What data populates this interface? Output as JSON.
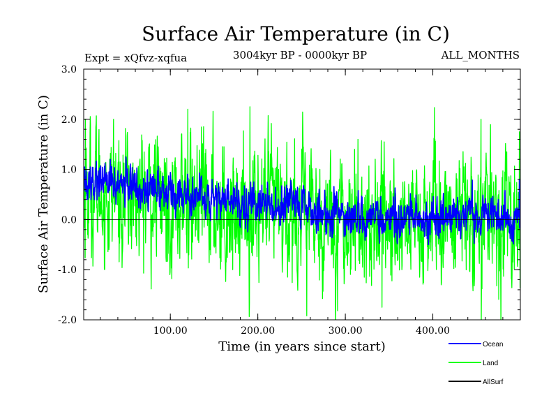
{
  "chart_data": {
    "type": "line",
    "title": "Surface Air Temperature (in C)",
    "subtitle": "3004kyr BP - 0000kyr BP",
    "left_label": "Expt = xQfvz-xqfua",
    "right_label": "ALL_MONTHS",
    "xlabel": "Time (in years since start)",
    "ylabel": "Surface Air Temperature (in C)",
    "xlim": [
      1,
      500
    ],
    "ylim": [
      -2.0,
      3.0
    ],
    "x_ticks": [
      {
        "value": 100,
        "label": "100.00"
      },
      {
        "value": 200,
        "label": "200.00"
      },
      {
        "value": 300,
        "label": "300.00"
      },
      {
        "value": 400,
        "label": "400.00"
      }
    ],
    "y_ticks": [
      {
        "value": 3.0,
        "label": "3.0"
      },
      {
        "value": 2.0,
        "label": "2.0"
      },
      {
        "value": 1.0,
        "label": "1.0"
      },
      {
        "value": 0.0,
        "label": "0.0"
      },
      {
        "value": -1.0,
        "label": "-1.0"
      },
      {
        "value": -2.0,
        "label": "-2.0"
      }
    ],
    "zero_line": 0.0,
    "series": [
      {
        "name": "Land",
        "color": "#00ff00",
        "style": "noisy monthly anomaly, roughly -1.9 to 2.2",
        "trend_start": 0.55,
        "trend_end": 0.0,
        "spread": 1.0,
        "extremes": [
          {
            "x": 3,
            "y": 2.0
          },
          {
            "x": 35,
            "y": 2.0
          },
          {
            "x": 120,
            "y": 2.2
          },
          {
            "x": 191,
            "y": 2.25
          },
          {
            "x": 256,
            "y": -1.92
          },
          {
            "x": 342,
            "y": -1.75
          },
          {
            "x": 455,
            "y": 2.0
          },
          {
            "x": 499,
            "y": 1.75
          }
        ]
      },
      {
        "name": "Ocean",
        "color": "#0000ff",
        "style": "damped anomaly, roughly -0.5 to 1.05",
        "trend_start": 0.8,
        "trend_end": 0.05,
        "spread": 0.3,
        "extremes": [
          {
            "x": 2,
            "y": 1.05
          },
          {
            "x": 30,
            "y": 0.95
          },
          {
            "x": 70,
            "y": 0.8
          },
          {
            "x": 395,
            "y": -0.5
          },
          {
            "x": 499,
            "y": 0.8
          }
        ]
      },
      {
        "name": "AllSurf",
        "color": "#000000",
        "style": "not visible in plot area",
        "trend_start": 0.0,
        "trend_end": 0.0,
        "spread": 0.0,
        "extremes": []
      }
    ],
    "legend": {
      "position": "bottom-right",
      "entries": [
        {
          "label": "Ocean",
          "color": "#0000ff"
        },
        {
          "label": "Land",
          "color": "#00ff00"
        },
        {
          "label": "AllSurf",
          "color": "#000000"
        }
      ]
    }
  }
}
